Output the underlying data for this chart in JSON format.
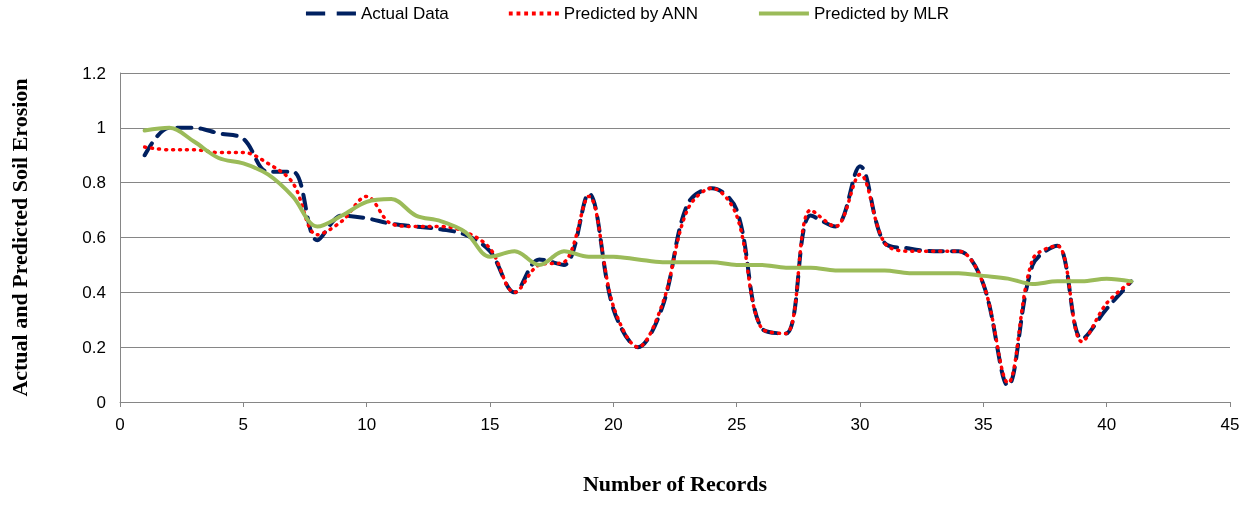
{
  "chart_data": {
    "type": "line",
    "xlabel": "Number of Records",
    "ylabel": "Actual and Predicted Soil Erosion",
    "x": [
      1,
      2,
      3,
      4,
      5,
      6,
      7,
      8,
      9,
      10,
      11,
      12,
      13,
      14,
      15,
      16,
      17,
      18,
      19,
      20,
      21,
      22,
      23,
      24,
      25,
      26,
      27,
      28,
      29,
      30,
      31,
      32,
      33,
      34,
      35,
      36,
      37,
      38,
      39,
      40,
      41
    ],
    "series": [
      {
        "name": "Actual Data",
        "color": "#002060",
        "line_style": "dashed",
        "values": [
          0.9,
          1.0,
          1.0,
          0.98,
          0.96,
          0.84,
          0.84,
          0.59,
          0.68,
          0.67,
          0.65,
          0.64,
          0.63,
          0.61,
          0.55,
          0.4,
          0.52,
          0.5,
          0.76,
          0.34,
          0.2,
          0.35,
          0.72,
          0.78,
          0.7,
          0.27,
          0.25,
          0.68,
          0.64,
          0.86,
          0.58,
          0.56,
          0.55,
          0.55,
          0.43,
          0.06,
          0.5,
          0.57,
          0.23,
          0.34,
          0.44
        ]
      },
      {
        "name": "Predicted by ANN",
        "color": "#ff0000",
        "line_style": "dotted",
        "values": [
          0.93,
          0.92,
          0.92,
          0.91,
          0.91,
          0.87,
          0.8,
          0.61,
          0.66,
          0.75,
          0.65,
          0.64,
          0.64,
          0.62,
          0.56,
          0.4,
          0.5,
          0.51,
          0.75,
          0.35,
          0.2,
          0.36,
          0.7,
          0.78,
          0.68,
          0.27,
          0.25,
          0.7,
          0.64,
          0.83,
          0.58,
          0.55,
          0.55,
          0.55,
          0.43,
          0.07,
          0.52,
          0.57,
          0.22,
          0.36,
          0.44
        ]
      },
      {
        "name": "Predicted by MLR",
        "color": "#9bbb59",
        "line_style": "solid",
        "values": [
          0.99,
          1.0,
          0.95,
          0.89,
          0.87,
          0.83,
          0.75,
          0.64,
          0.68,
          0.73,
          0.74,
          0.68,
          0.66,
          0.62,
          0.53,
          0.55,
          0.5,
          0.55,
          0.53,
          0.53,
          0.52,
          0.51,
          0.51,
          0.51,
          0.5,
          0.5,
          0.49,
          0.49,
          0.48,
          0.48,
          0.48,
          0.47,
          0.47,
          0.47,
          0.46,
          0.45,
          0.43,
          0.44,
          0.44,
          0.45,
          0.44
        ]
      }
    ],
    "xlim": [
      0,
      45
    ],
    "xticks": [
      0,
      5,
      10,
      15,
      20,
      25,
      30,
      35,
      40,
      45
    ],
    "ylim": [
      0,
      1.2
    ],
    "yticks": [
      0,
      0.2,
      0.4,
      0.6,
      0.8,
      1,
      1.2
    ],
    "grid": "y",
    "legend": "top",
    "marker": "none"
  }
}
